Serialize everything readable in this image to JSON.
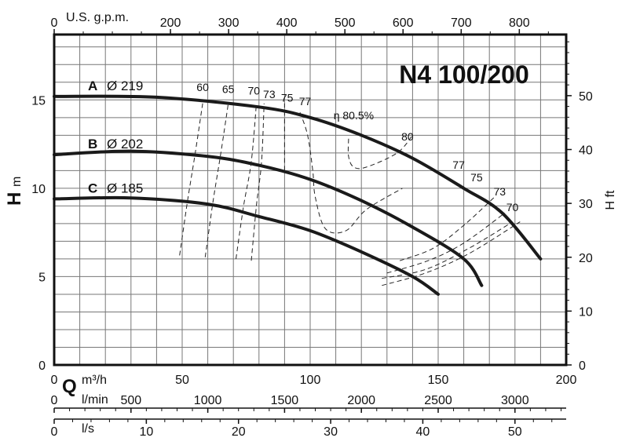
{
  "chart_data": {
    "type": "line",
    "title": "N4 100/200",
    "x_label": "Q",
    "x_unit": "m³/h",
    "x_ticks": [
      "0",
      "50",
      "100",
      "150",
      "200"
    ],
    "xlim": [
      0,
      200
    ],
    "y_label": "H",
    "y_unit": "m",
    "y_ticks": [
      "0",
      "5",
      "10",
      "15"
    ],
    "ylim": [
      0,
      18.7
    ],
    "grid": true,
    "secondary_axes": {
      "top": {
        "label": "U.S. g.p.m.",
        "ticks": [
          "0",
          "200",
          "300",
          "400",
          "500",
          "600",
          "700",
          "800"
        ],
        "ticks_at_q": [
          0,
          45.42,
          68.14,
          90.85,
          113.56,
          136.27,
          158.99,
          181.7
        ]
      },
      "right": {
        "label": "H ft",
        "ticks": [
          "0",
          "10",
          "20",
          "30",
          "40",
          "50"
        ],
        "ticks_at_h": [
          0,
          3.048,
          6.096,
          9.144,
          12.192,
          15.24
        ]
      },
      "l_min": {
        "label": "l/min",
        "ticks": [
          "0",
          "500",
          "1000",
          "1500",
          "2000",
          "2500",
          "3000"
        ],
        "ticks_at_q": [
          0,
          30,
          60,
          90,
          120,
          150,
          180
        ]
      },
      "l_s": {
        "label": "l/s",
        "ticks": [
          "0",
          "10",
          "20",
          "30",
          "40",
          "50"
        ],
        "ticks_at_q": [
          0,
          36,
          72,
          108,
          144,
          180
        ]
      }
    },
    "series": [
      {
        "name": "A",
        "diameter_label": "Ø 219",
        "x": [
          0,
          40,
          80,
          100,
          120,
          140,
          160,
          175,
          190
        ],
        "y": [
          15.2,
          15.15,
          14.6,
          14.0,
          13.0,
          11.7,
          10.0,
          8.6,
          6.0
        ]
      },
      {
        "name": "B",
        "diameter_label": "Ø 202",
        "x": [
          0,
          30,
          60,
          80,
          100,
          120,
          140,
          160,
          167
        ],
        "y": [
          11.9,
          12.1,
          11.8,
          11.3,
          10.5,
          9.3,
          7.8,
          6.0,
          4.5
        ]
      },
      {
        "name": "C",
        "diameter_label": "Ø 185",
        "x": [
          0,
          30,
          60,
          80,
          100,
          120,
          140,
          150
        ],
        "y": [
          9.4,
          9.45,
          9.1,
          8.4,
          7.6,
          6.4,
          5.0,
          4.0
        ]
      }
    ],
    "efficiency_labels": [
      "60",
      "65",
      "70",
      "73",
      "75",
      "77",
      "η 80.5%",
      "80",
      "77",
      "75",
      "73",
      "70"
    ]
  }
}
